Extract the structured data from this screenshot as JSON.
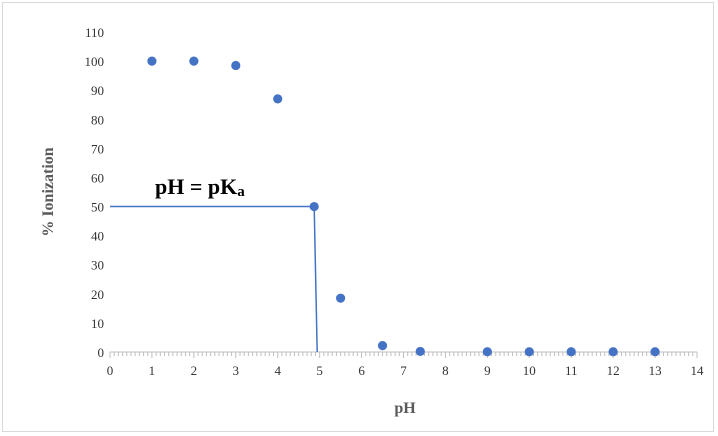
{
  "chart_data": {
    "type": "scatter",
    "xlabel": "pH",
    "ylabel": "% Ionization",
    "xlim": [
      0,
      14
    ],
    "ylim": [
      0,
      110
    ],
    "x_ticks": [
      0,
      1,
      2,
      3,
      4,
      5,
      6,
      7,
      8,
      9,
      10,
      11,
      12,
      13,
      14
    ],
    "y_ticks": [
      0,
      10,
      20,
      30,
      40,
      50,
      60,
      70,
      80,
      90,
      100,
      110
    ],
    "grid": false,
    "marker_color": "#4472c4",
    "line_color": "#4472c4",
    "series": [
      {
        "x": [
          1,
          2,
          3,
          4,
          4.87,
          5.5,
          6.5,
          7.4,
          9,
          10,
          11,
          12,
          13
        ],
        "y": [
          100,
          100,
          98.5,
          87,
          50,
          18.5,
          2.2,
          0.2,
          0.1,
          0.1,
          0.1,
          0.1,
          0.1
        ]
      }
    ],
    "reference_lines": {
      "horizontal": {
        "y": 50,
        "x_from": 0,
        "x_to": 4.87
      },
      "vertical": {
        "x": 4.87,
        "y_from": 50,
        "y_to": 0
      }
    },
    "annotation": {
      "main": "pH = pK",
      "subscript": "a"
    }
  }
}
